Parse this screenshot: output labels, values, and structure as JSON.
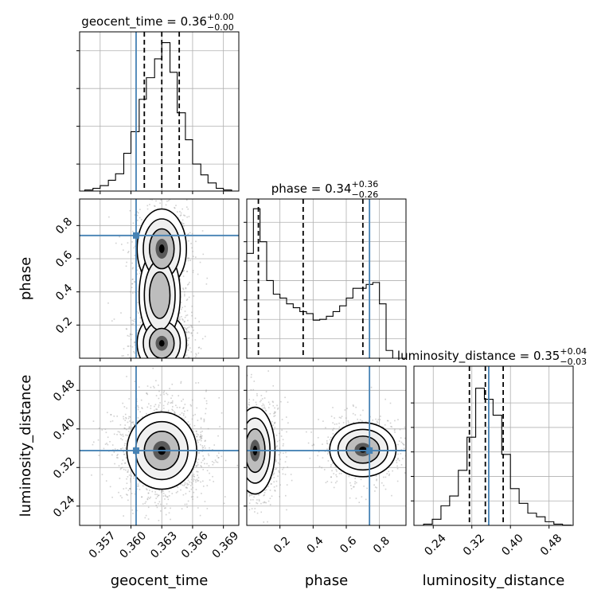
{
  "chart_data": {
    "type": "corner",
    "parameters": [
      "geocent_time",
      "phase",
      "luminosity_distance"
    ],
    "truths": [
      0.3605,
      0.74,
      0.355
    ],
    "axis_labels": [
      "geocent_time",
      "phase",
      "luminosity_distance"
    ],
    "panel_titles": [
      {
        "label": "geocent_time = 0.36",
        "sup": "+0.00",
        "sub": "−0.00"
      },
      {
        "label": "phase = 0.34",
        "sup": "+0.36",
        "sub": "−0.26"
      },
      {
        "label": "luminosity_distance = 0.35",
        "sup": "+0.04",
        "sub": "−0.03"
      }
    ],
    "ranges": [
      [
        0.355,
        0.3705
      ],
      [
        0.0,
        0.96
      ],
      [
        0.2,
        0.53
      ]
    ],
    "ticks": [
      {
        "values": [
          0.357,
          0.36,
          0.363,
          0.366,
          0.369
        ],
        "labels": [
          "0.357",
          "0.360",
          "0.363",
          "0.366",
          "0.369"
        ]
      },
      {
        "values": [
          0.2,
          0.4,
          0.6,
          0.8
        ],
        "labels": [
          "0.2",
          "0.4",
          "0.6",
          "0.8"
        ]
      },
      {
        "values": [
          0.24,
          0.32,
          0.4,
          0.48
        ],
        "labels": [
          "0.24",
          "0.32",
          "0.40",
          "0.48"
        ]
      }
    ],
    "marginal_hist_ticks": [
      [
        0.5,
        1.2,
        1.9,
        2.6
      ],
      [
        0.5,
        1.0,
        1.5,
        2.0,
        2.5,
        3.0,
        3.5
      ],
      [
        1,
        2,
        3,
        4,
        5
      ]
    ],
    "histograms": [
      {
        "edges": [
          0.3555,
          0.3563,
          0.357,
          0.3578,
          0.3585,
          0.3593,
          0.36,
          0.3608,
          0.3615,
          0.3623,
          0.363,
          0.3638,
          0.3645,
          0.3653,
          0.366,
          0.3668,
          0.3675,
          0.3683,
          0.369,
          0.3698
        ],
        "counts": [
          0.02,
          0.05,
          0.1,
          0.2,
          0.32,
          0.7,
          1.1,
          1.7,
          2.1,
          2.45,
          2.75,
          2.2,
          1.45,
          0.95,
          0.5,
          0.3,
          0.15,
          0.05,
          0.02
        ],
        "quantiles": [
          0.3613,
          0.363,
          0.3647
        ],
        "ymax": 2.95
      },
      {
        "edges": [
          0.0,
          0.04,
          0.08,
          0.12,
          0.16,
          0.2,
          0.24,
          0.28,
          0.32,
          0.36,
          0.4,
          0.44,
          0.48,
          0.52,
          0.56,
          0.6,
          0.64,
          0.68,
          0.72,
          0.76,
          0.8,
          0.84,
          0.88
        ],
        "counts": [
          2.7,
          3.85,
          3.0,
          2.0,
          1.65,
          1.55,
          1.4,
          1.3,
          1.2,
          1.15,
          0.98,
          1.0,
          1.08,
          1.2,
          1.35,
          1.55,
          1.8,
          1.8,
          1.9,
          1.95,
          1.4,
          0.2
        ],
        "quantiles": [
          0.07,
          0.34,
          0.7
        ],
        "ymax": 4.1
      },
      {
        "edges": [
          0.22,
          0.238,
          0.256,
          0.274,
          0.292,
          0.31,
          0.328,
          0.346,
          0.364,
          0.382,
          0.4,
          0.418,
          0.436,
          0.454,
          0.472,
          0.49,
          0.508,
          0.526
        ],
        "counts": [
          0.05,
          0.25,
          0.8,
          1.2,
          2.25,
          3.6,
          5.6,
          5.15,
          4.5,
          2.9,
          1.5,
          0.9,
          0.5,
          0.35,
          0.15,
          0.05,
          0.01
        ],
        "quantiles": [
          0.315,
          0.348,
          0.385
        ],
        "ymax": 6.5
      }
    ],
    "joint_modes": [
      {
        "pair": [
          0,
          1
        ],
        "modes": [
          {
            "mx": 0.363,
            "my": 0.09,
            "sx": 0.0012,
            "sy": 0.09,
            "w": 0.45
          },
          {
            "mx": 0.363,
            "my": 0.66,
            "sx": 0.0012,
            "sy": 0.12,
            "w": 0.35
          },
          {
            "mx": 0.3628,
            "my": 0.38,
            "sx": 0.001,
            "sy": 0.14,
            "w": 0.2
          }
        ]
      },
      {
        "pair": [
          0,
          2
        ],
        "modes": [
          {
            "mx": 0.363,
            "my": 0.355,
            "sx": 0.0017,
            "sy": 0.04,
            "w": 1.0
          }
        ]
      },
      {
        "pair": [
          1,
          2
        ],
        "modes": [
          {
            "mx": 0.05,
            "my": 0.355,
            "sx": 0.06,
            "sy": 0.045,
            "w": 0.55
          },
          {
            "mx": 0.7,
            "my": 0.357,
            "sx": 0.1,
            "sy": 0.028,
            "w": 0.45
          }
        ]
      }
    ],
    "colors": {
      "truth": "#4682b4",
      "contour": "#000000",
      "scatter": "#9a9a9a",
      "grid": "#b0b0b0"
    },
    "grid": true
  }
}
